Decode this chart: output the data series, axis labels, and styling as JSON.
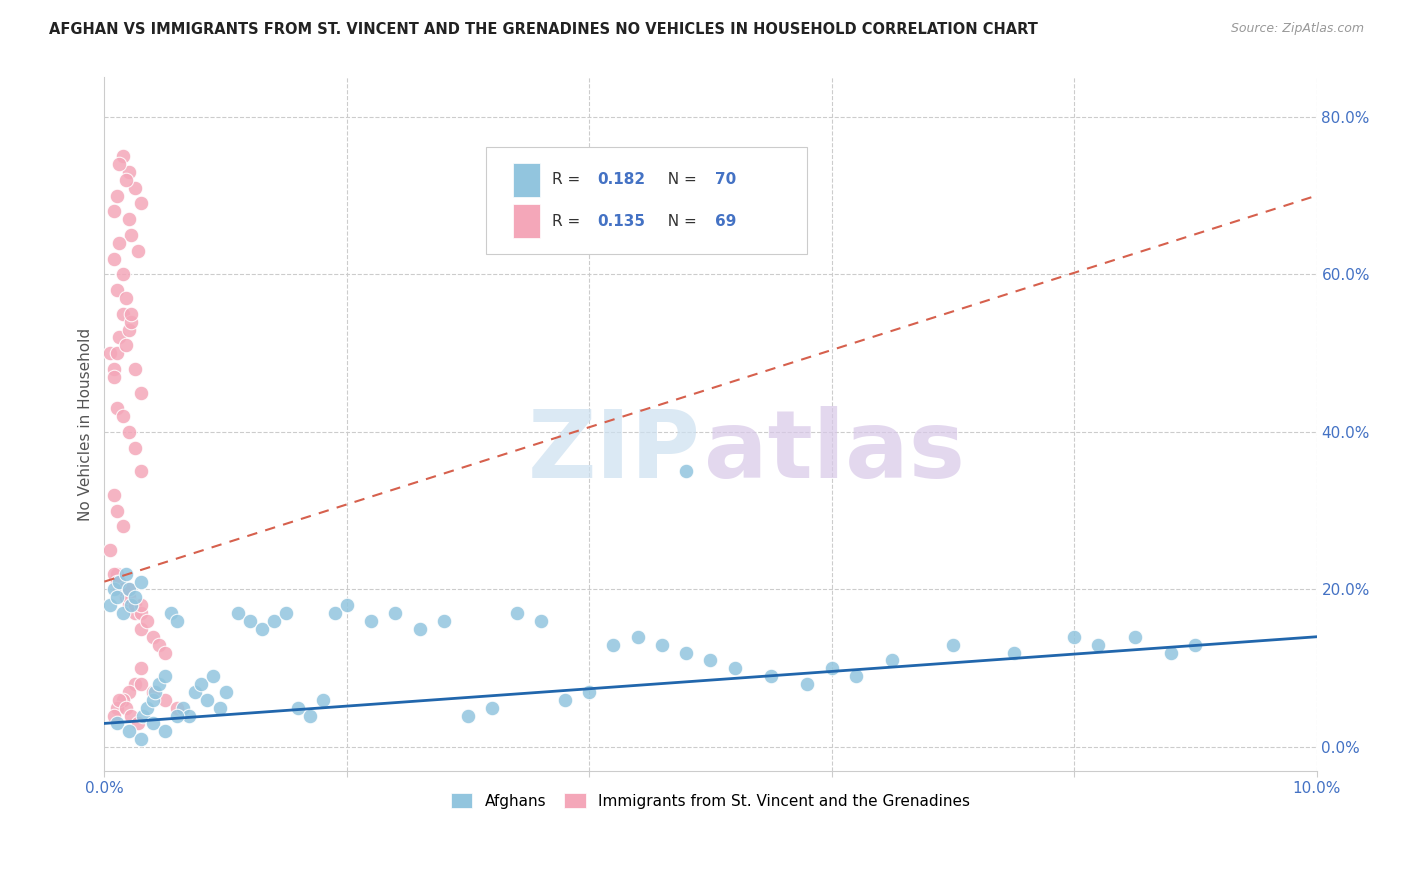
{
  "title": "AFGHAN VS IMMIGRANTS FROM ST. VINCENT AND THE GRENADINES NO VEHICLES IN HOUSEHOLD CORRELATION CHART",
  "source": "Source: ZipAtlas.com",
  "ylabel": "No Vehicles in Household",
  "xlim": [
    0.0,
    0.1
  ],
  "ylim": [
    -0.03,
    0.85
  ],
  "right_yticks": [
    0.0,
    0.2,
    0.4,
    0.6,
    0.8
  ],
  "right_yticklabels": [
    "0.0%",
    "20.0%",
    "40.0%",
    "60.0%",
    "80.0%"
  ],
  "bottom_xticks": [
    0.0,
    0.02,
    0.04,
    0.06,
    0.08,
    0.1
  ],
  "bottom_xticklabels": [
    "0.0%",
    "",
    "",
    "",
    "",
    "10.0%"
  ],
  "legend_label_blue": "Afghans",
  "legend_label_pink": "Immigrants from St. Vincent and the Grenadines",
  "blue_color": "#92c5de",
  "pink_color": "#f4a7b9",
  "blue_line_color": "#2166ac",
  "pink_line_color": "#d6604d",
  "axis_color": "#4472c4",
  "blue_r": "0.182",
  "blue_n": "70",
  "pink_r": "0.135",
  "pink_n": "69",
  "blue_scatter_x": [
    0.0005,
    0.0008,
    0.001,
    0.0012,
    0.0015,
    0.0018,
    0.002,
    0.0022,
    0.0025,
    0.003,
    0.0032,
    0.0035,
    0.004,
    0.0042,
    0.0045,
    0.005,
    0.0055,
    0.006,
    0.0065,
    0.007,
    0.0075,
    0.008,
    0.0085,
    0.009,
    0.0095,
    0.01,
    0.011,
    0.012,
    0.013,
    0.014,
    0.015,
    0.016,
    0.017,
    0.018,
    0.019,
    0.02,
    0.022,
    0.024,
    0.026,
    0.028,
    0.03,
    0.032,
    0.034,
    0.036,
    0.038,
    0.04,
    0.042,
    0.044,
    0.046,
    0.048,
    0.05,
    0.052,
    0.055,
    0.058,
    0.06,
    0.062,
    0.065,
    0.07,
    0.075,
    0.08,
    0.082,
    0.085,
    0.088,
    0.09,
    0.001,
    0.002,
    0.003,
    0.004,
    0.005,
    0.006
  ],
  "blue_scatter_y": [
    0.18,
    0.2,
    0.19,
    0.21,
    0.17,
    0.22,
    0.2,
    0.18,
    0.19,
    0.21,
    0.04,
    0.05,
    0.06,
    0.07,
    0.08,
    0.09,
    0.17,
    0.16,
    0.05,
    0.04,
    0.07,
    0.08,
    0.06,
    0.09,
    0.05,
    0.07,
    0.17,
    0.16,
    0.15,
    0.16,
    0.17,
    0.05,
    0.04,
    0.06,
    0.17,
    0.18,
    0.16,
    0.17,
    0.15,
    0.16,
    0.04,
    0.05,
    0.17,
    0.16,
    0.06,
    0.07,
    0.13,
    0.14,
    0.13,
    0.12,
    0.11,
    0.1,
    0.09,
    0.08,
    0.1,
    0.09,
    0.11,
    0.13,
    0.12,
    0.14,
    0.13,
    0.14,
    0.12,
    0.13,
    0.03,
    0.02,
    0.01,
    0.03,
    0.02,
    0.04
  ],
  "pink_scatter_x": [
    0.0005,
    0.001,
    0.0008,
    0.0012,
    0.0015,
    0.002,
    0.0018,
    0.0022,
    0.001,
    0.0008,
    0.0015,
    0.002,
    0.0025,
    0.003,
    0.0012,
    0.0018,
    0.0022,
    0.0028,
    0.002,
    0.0015,
    0.001,
    0.0008,
    0.0012,
    0.0018,
    0.0022,
    0.0025,
    0.003,
    0.0008,
    0.001,
    0.0015,
    0.002,
    0.0025,
    0.003,
    0.0008,
    0.001,
    0.0015,
    0.0005,
    0.001,
    0.0012,
    0.0018,
    0.002,
    0.0025,
    0.003,
    0.0008,
    0.001,
    0.0015,
    0.002,
    0.0025,
    0.003,
    0.0035,
    0.004,
    0.0045,
    0.005,
    0.003,
    0.0025,
    0.002,
    0.0015,
    0.001,
    0.0008,
    0.0012,
    0.0018,
    0.0022,
    0.0028,
    0.003,
    0.004,
    0.005,
    0.006,
    0.002,
    0.003
  ],
  "pink_scatter_y": [
    0.5,
    0.5,
    0.48,
    0.52,
    0.55,
    0.53,
    0.51,
    0.54,
    0.7,
    0.68,
    0.75,
    0.73,
    0.71,
    0.69,
    0.74,
    0.72,
    0.65,
    0.63,
    0.67,
    0.6,
    0.58,
    0.62,
    0.64,
    0.57,
    0.55,
    0.48,
    0.45,
    0.47,
    0.43,
    0.42,
    0.4,
    0.38,
    0.35,
    0.32,
    0.3,
    0.28,
    0.25,
    0.22,
    0.2,
    0.19,
    0.18,
    0.17,
    0.15,
    0.22,
    0.21,
    0.2,
    0.19,
    0.18,
    0.17,
    0.16,
    0.14,
    0.13,
    0.12,
    0.1,
    0.08,
    0.07,
    0.06,
    0.05,
    0.04,
    0.06,
    0.05,
    0.04,
    0.03,
    0.08,
    0.07,
    0.06,
    0.05,
    0.2,
    0.18
  ],
  "blue_trendline_x": [
    0.0,
    0.1
  ],
  "blue_trendline_y": [
    0.03,
    0.14
  ],
  "pink_trendline_x": [
    0.0,
    0.1
  ],
  "pink_trendline_y": [
    0.21,
    0.7
  ],
  "blue_isolated_x": [
    0.048
  ],
  "blue_isolated_y": [
    0.35
  ],
  "watermark_zip_color": "#cce0f0",
  "watermark_atlas_color": "#d8c8e8"
}
